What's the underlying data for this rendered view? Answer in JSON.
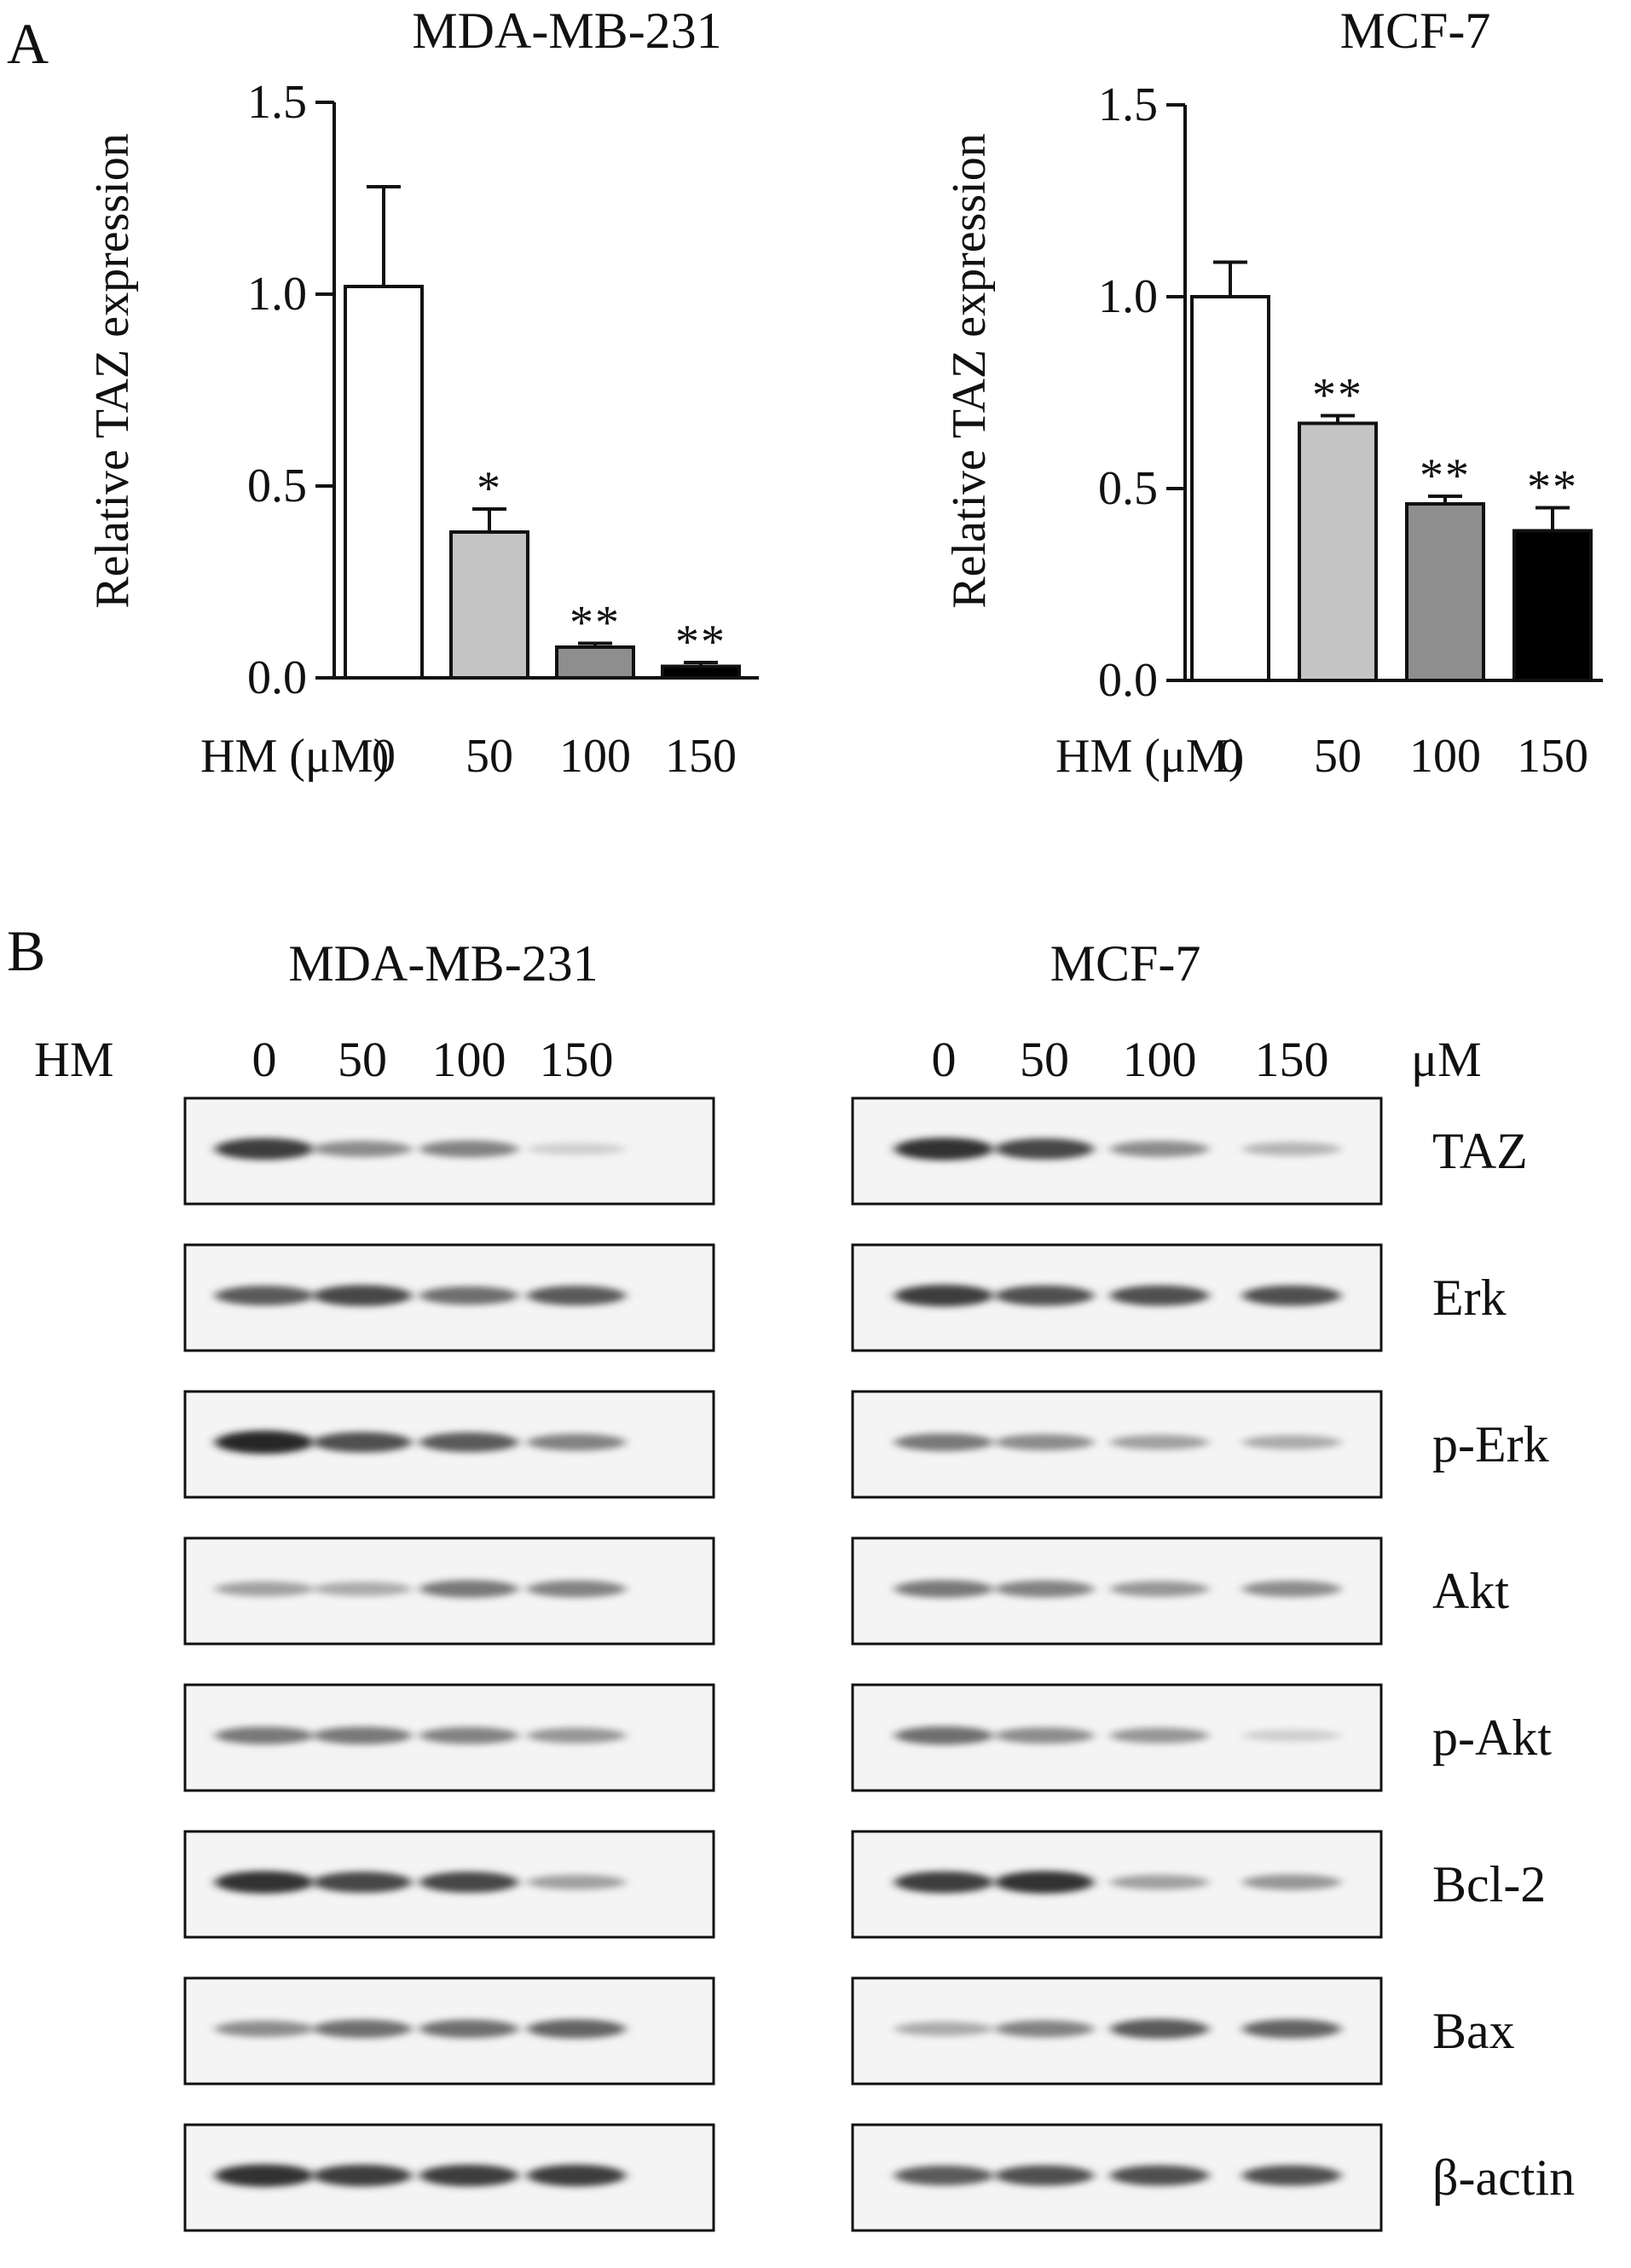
{
  "panel_labels": {
    "a": "A",
    "b": "B"
  },
  "panel_a": {
    "xaxis_label": "HM (μM)",
    "ylabel": "Relative  TAZ expression",
    "colors": {
      "0": "#ffffff",
      "50": "#c4c4c4",
      "100": "#8e8e8e",
      "150": "#000000"
    }
  },
  "chart_data": [
    {
      "type": "bar",
      "title": "MDA-MB-231",
      "xlabel": "HM (μM)",
      "ylabel": "Relative  TAZ expression",
      "categories": [
        "0",
        "50",
        "100",
        "150"
      ],
      "values": [
        1.02,
        0.38,
        0.08,
        0.03
      ],
      "errors": [
        0.26,
        0.06,
        0.01,
        0.01
      ],
      "significance": [
        "",
        "*",
        "**",
        "**"
      ],
      "ylim": [
        0,
        1.5
      ],
      "yticks": [
        "0.0",
        "0.5",
        "1.0",
        "1.5"
      ],
      "grid": false
    },
    {
      "type": "bar",
      "title": "MCF-7",
      "xlabel": "HM (μM)",
      "ylabel": "Relative  TAZ expression",
      "categories": [
        "0",
        "50",
        "100",
        "150"
      ],
      "values": [
        1.0,
        0.67,
        0.46,
        0.39
      ],
      "errors": [
        0.09,
        0.02,
        0.02,
        0.06
      ],
      "significance": [
        "",
        "**",
        "**",
        "**"
      ],
      "ylim": [
        0,
        1.5
      ],
      "yticks": [
        "0.0",
        "0.5",
        "1.0",
        "1.5"
      ],
      "grid": false
    }
  ],
  "panel_b": {
    "titles": [
      "MDA-MB-231",
      "MCF-7"
    ],
    "hm_label": "HM",
    "unit_label": "μM",
    "lanes": [
      "0",
      "50",
      "100",
      "150"
    ],
    "proteins": [
      "TAZ",
      "Erk",
      "p-Erk",
      "Akt",
      "p-Akt",
      "Bcl-2",
      "Bax",
      "β-actin"
    ],
    "band_intensity": {
      "MDA-MB-231": [
        [
          0.85,
          0.45,
          0.5,
          0.12
        ],
        [
          0.7,
          0.8,
          0.6,
          0.7
        ],
        [
          0.95,
          0.75,
          0.7,
          0.5
        ],
        [
          0.35,
          0.3,
          0.55,
          0.5
        ],
        [
          0.55,
          0.55,
          0.5,
          0.4
        ],
        [
          0.9,
          0.8,
          0.8,
          0.35
        ],
        [
          0.45,
          0.6,
          0.6,
          0.65
        ],
        [
          0.9,
          0.85,
          0.85,
          0.85
        ]
      ],
      "MCF-7": [
        [
          0.9,
          0.8,
          0.45,
          0.25
        ],
        [
          0.85,
          0.75,
          0.75,
          0.75
        ],
        [
          0.55,
          0.45,
          0.35,
          0.3
        ],
        [
          0.55,
          0.5,
          0.4,
          0.45
        ],
        [
          0.6,
          0.45,
          0.4,
          0.12
        ],
        [
          0.85,
          0.9,
          0.35,
          0.4
        ],
        [
          0.3,
          0.5,
          0.7,
          0.65
        ],
        [
          0.7,
          0.75,
          0.75,
          0.75
        ]
      ]
    }
  }
}
